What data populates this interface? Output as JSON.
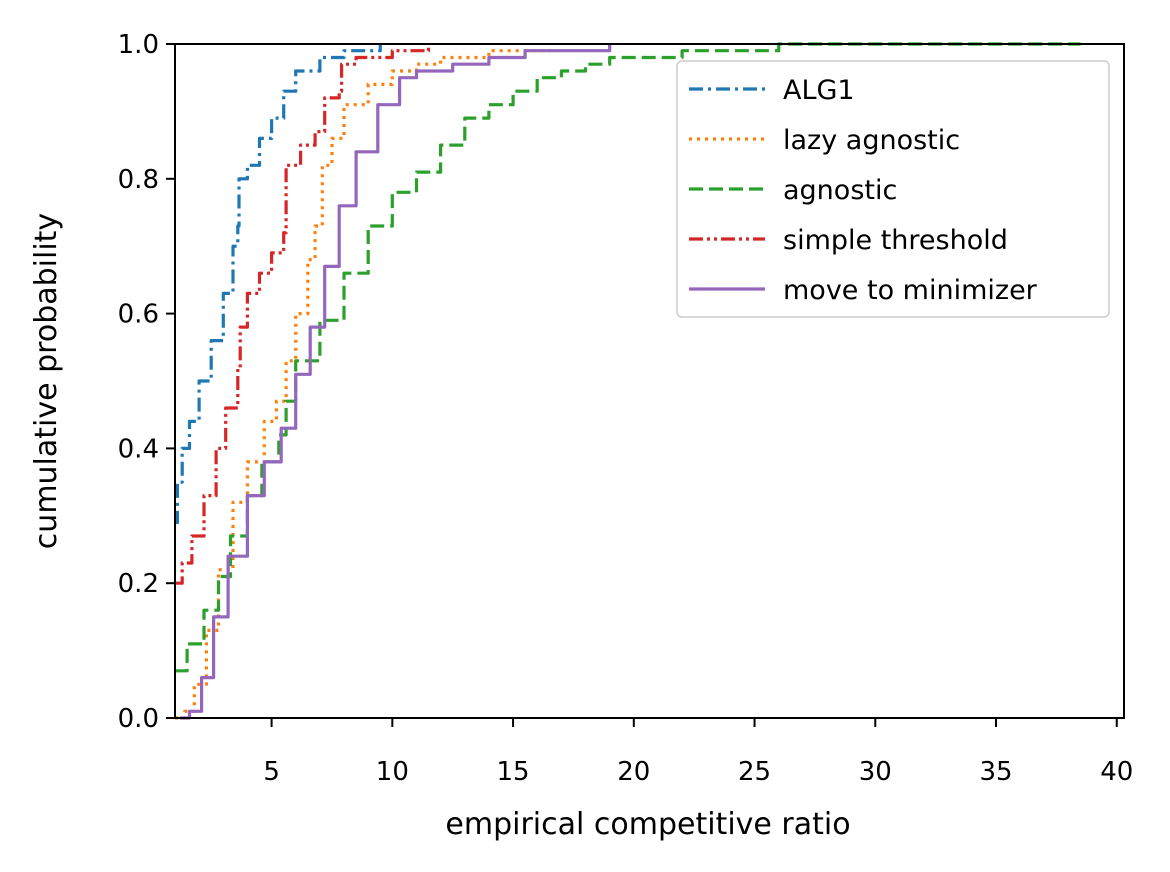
{
  "chart_data": {
    "type": "line",
    "title": "",
    "xlabel": "empirical competitive ratio",
    "ylabel": "cumulative probability",
    "xlim": [
      1,
      40.3
    ],
    "ylim": [
      0,
      1
    ],
    "xticks": [
      5,
      10,
      15,
      20,
      25,
      30,
      35,
      40
    ],
    "yticks": [
      0.0,
      0.2,
      0.4,
      0.6,
      0.8,
      1.0
    ],
    "xtick_labels": [
      "5",
      "10",
      "15",
      "20",
      "25",
      "30",
      "35",
      "40"
    ],
    "ytick_labels": [
      "0.0",
      "0.2",
      "0.4",
      "0.6",
      "0.8",
      "1.0"
    ],
    "grid": false,
    "legend_position": "top-right",
    "series": [
      {
        "name": "ALG1",
        "color": "#1f77b4",
        "dash": "dashdot",
        "points": [
          [
            1.0,
            0.29
          ],
          [
            1.1,
            0.35
          ],
          [
            1.3,
            0.4
          ],
          [
            1.6,
            0.44
          ],
          [
            2.0,
            0.5
          ],
          [
            2.5,
            0.56
          ],
          [
            3.0,
            0.63
          ],
          [
            3.4,
            0.7
          ],
          [
            3.6,
            0.73
          ],
          [
            3.65,
            0.8
          ],
          [
            4.0,
            0.82
          ],
          [
            4.5,
            0.86
          ],
          [
            5.0,
            0.89
          ],
          [
            5.5,
            0.93
          ],
          [
            6.0,
            0.96
          ],
          [
            7.0,
            0.98
          ],
          [
            8.0,
            0.99
          ],
          [
            9.5,
            1.0
          ]
        ]
      },
      {
        "name": "lazy agnostic",
        "color": "#ff7f0e",
        "dash": "dotted",
        "points": [
          [
            1.0,
            0.0
          ],
          [
            1.4,
            0.01
          ],
          [
            1.8,
            0.05
          ],
          [
            2.3,
            0.13
          ],
          [
            2.8,
            0.22
          ],
          [
            3.4,
            0.32
          ],
          [
            4.0,
            0.38
          ],
          [
            4.7,
            0.44
          ],
          [
            5.2,
            0.47
          ],
          [
            5.6,
            0.53
          ],
          [
            6.0,
            0.6
          ],
          [
            6.5,
            0.68
          ],
          [
            6.8,
            0.73
          ],
          [
            7.1,
            0.82
          ],
          [
            7.5,
            0.86
          ],
          [
            8.0,
            0.91
          ],
          [
            9.0,
            0.94
          ],
          [
            10.0,
            0.96
          ],
          [
            11.0,
            0.97
          ],
          [
            12.0,
            0.98
          ],
          [
            14.0,
            0.99
          ],
          [
            16.5,
            1.0
          ]
        ]
      },
      {
        "name": "agnostic",
        "color": "#2ca02c",
        "dash": "dashed",
        "points": [
          [
            1.0,
            0.07
          ],
          [
            1.5,
            0.11
          ],
          [
            2.2,
            0.16
          ],
          [
            2.8,
            0.21
          ],
          [
            3.3,
            0.27
          ],
          [
            4.0,
            0.33
          ],
          [
            4.6,
            0.38
          ],
          [
            5.3,
            0.42
          ],
          [
            5.6,
            0.47
          ],
          [
            6.0,
            0.53
          ],
          [
            7.0,
            0.59
          ],
          [
            8.0,
            0.66
          ],
          [
            9.0,
            0.73
          ],
          [
            10.0,
            0.78
          ],
          [
            11.0,
            0.81
          ],
          [
            12.0,
            0.85
          ],
          [
            13.0,
            0.89
          ],
          [
            14.0,
            0.91
          ],
          [
            15.0,
            0.93
          ],
          [
            16.0,
            0.95
          ],
          [
            17.0,
            0.96
          ],
          [
            18.0,
            0.97
          ],
          [
            19.0,
            0.98
          ],
          [
            21.0,
            0.98
          ],
          [
            22.0,
            0.99
          ],
          [
            24.5,
            0.99
          ],
          [
            26.0,
            1.0
          ],
          [
            38.5,
            1.0
          ]
        ]
      },
      {
        "name": "simple threshold",
        "color": "#d62728",
        "dash": "dashdotdot",
        "points": [
          [
            1.0,
            0.2
          ],
          [
            1.3,
            0.23
          ],
          [
            1.7,
            0.27
          ],
          [
            2.2,
            0.33
          ],
          [
            2.7,
            0.4
          ],
          [
            3.1,
            0.46
          ],
          [
            3.6,
            0.52
          ],
          [
            3.7,
            0.58
          ],
          [
            4.0,
            0.63
          ],
          [
            4.5,
            0.66
          ],
          [
            5.0,
            0.69
          ],
          [
            5.5,
            0.72
          ],
          [
            5.6,
            0.82
          ],
          [
            6.2,
            0.85
          ],
          [
            6.8,
            0.87
          ],
          [
            7.1,
            0.87
          ],
          [
            7.2,
            0.92
          ],
          [
            7.8,
            0.93
          ],
          [
            7.9,
            0.97
          ],
          [
            8.5,
            0.98
          ],
          [
            10.0,
            0.99
          ],
          [
            11.5,
            1.0
          ]
        ]
      },
      {
        "name": "move to minimizer",
        "color": "#9467bd",
        "dash": "solid",
        "points": [
          [
            1.2,
            0.0
          ],
          [
            1.6,
            0.01
          ],
          [
            2.1,
            0.06
          ],
          [
            2.6,
            0.15
          ],
          [
            3.2,
            0.24
          ],
          [
            4.0,
            0.33
          ],
          [
            4.7,
            0.38
          ],
          [
            5.4,
            0.43
          ],
          [
            6.0,
            0.51
          ],
          [
            6.6,
            0.58
          ],
          [
            7.2,
            0.67
          ],
          [
            7.8,
            0.76
          ],
          [
            8.5,
            0.84
          ],
          [
            9.4,
            0.91
          ],
          [
            10.3,
            0.95
          ],
          [
            11.0,
            0.96
          ],
          [
            12.5,
            0.97
          ],
          [
            14.0,
            0.98
          ],
          [
            15.5,
            0.99
          ],
          [
            17.0,
            0.99
          ],
          [
            19.0,
            1.0
          ]
        ]
      }
    ]
  }
}
